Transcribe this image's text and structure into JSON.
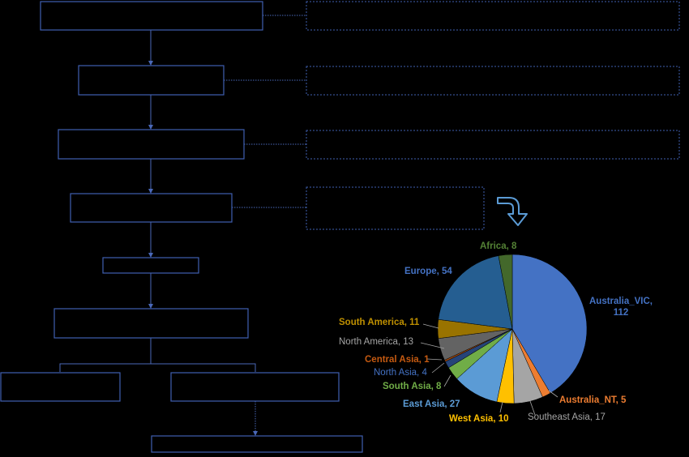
{
  "flowchart": {
    "boxes": [
      {
        "id": "box-1",
        "text": ""
      },
      {
        "id": "box-2",
        "text": ""
      },
      {
        "id": "box-3",
        "text": ""
      },
      {
        "id": "box-4",
        "text": ""
      },
      {
        "id": "box-5",
        "text": ""
      },
      {
        "id": "box-6",
        "text": ""
      },
      {
        "id": "box-7a",
        "text": ""
      },
      {
        "id": "box-7b",
        "text": ""
      },
      {
        "id": "box-8",
        "text": ""
      }
    ],
    "side_notes": [
      {
        "id": "note-1",
        "text": ""
      },
      {
        "id": "note-2",
        "text": ""
      },
      {
        "id": "note-3",
        "text": ""
      },
      {
        "id": "note-4",
        "text": ""
      }
    ],
    "connector_color": "#4a68b8",
    "curved_arrow_color": "#5b9bd5"
  },
  "chart_data": {
    "type": "pie",
    "slices": [
      {
        "label": "Australia_VIC",
        "value": 112,
        "color": "#4472c4",
        "bold": true
      },
      {
        "label": "Australia_NT",
        "value": 5,
        "color": "#ed7d31",
        "bold": true
      },
      {
        "label": "Southeast Asia",
        "value": 17,
        "color": "#a5a5a5",
        "bold": false
      },
      {
        "label": "West Asia",
        "value": 10,
        "color": "#ffc000",
        "bold": true
      },
      {
        "label": "East Asia",
        "value": 27,
        "color": "#5b9bd5",
        "bold": true
      },
      {
        "label": "South Asia",
        "value": 8,
        "color": "#70ad47",
        "bold": true
      },
      {
        "label": "North Asia",
        "value": 4,
        "color": "#264478",
        "bold": false
      },
      {
        "label": "Central Asia",
        "value": 1,
        "color": "#9e480e",
        "bold": true
      },
      {
        "label": "North America",
        "value": 13,
        "color": "#636363",
        "bold": false
      },
      {
        "label": "South America",
        "value": 11,
        "color": "#997300",
        "bold": true
      },
      {
        "label": "Europe",
        "value": 54,
        "color": "#255e91",
        "bold": true
      },
      {
        "label": "Africa",
        "value": 8,
        "color": "#43682b",
        "bold": true
      }
    ],
    "label_colors": {
      "Australia_VIC": "#4472c4",
      "Australia_NT": "#ed7d31",
      "Southeast Asia": "#a5a5a5",
      "West Asia": "#ffc000",
      "East Asia": "#5b9bd5",
      "South Asia": "#70ad47",
      "North Asia": "#4472c4",
      "Central Asia": "#c55a11",
      "North America": "#a5a5a5",
      "South America": "#bf9000",
      "Europe": "#4472c4",
      "Africa": "#548235"
    },
    "title": "",
    "legend": "none",
    "start": "top",
    "direction": "clockwise"
  }
}
